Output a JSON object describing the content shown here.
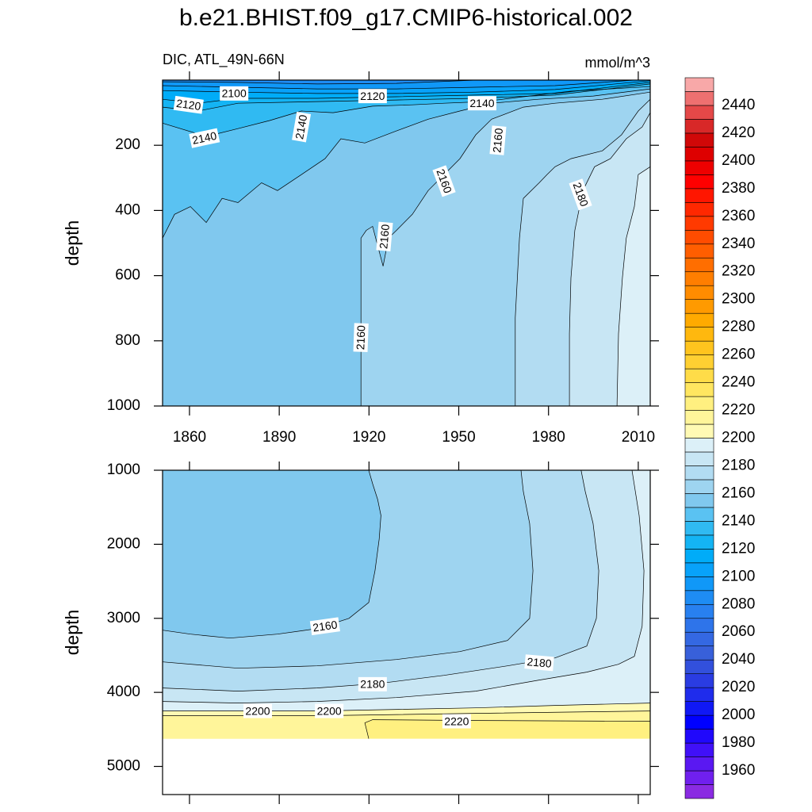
{
  "title": "b.e21.BHIST.f09_g17.CMIP6-historical.002",
  "colorbar": {
    "levels": [
      1950,
      1960,
      1970,
      1980,
      1990,
      2000,
      2010,
      2020,
      2030,
      2040,
      2050,
      2060,
      2070,
      2080,
      2090,
      2100,
      2110,
      2120,
      2130,
      2140,
      2150,
      2160,
      2170,
      2180,
      2190,
      2200,
      2210,
      2220,
      2230,
      2240,
      2250,
      2260,
      2270,
      2280,
      2290,
      2300,
      2310,
      2320,
      2330,
      2340,
      2350,
      2360,
      2370,
      2380,
      2390,
      2400,
      2410,
      2420,
      2430,
      2440,
      2450
    ],
    "colors": [
      "#8a2be2",
      "#7020ee",
      "#5a18f2",
      "#4010f8",
      "#2008fc",
      "#0000ff",
      "#1018f5",
      "#1f2cec",
      "#2a3ce2",
      "#3250dc",
      "#3860da",
      "#3468e2",
      "#2e74ea",
      "#2880f0",
      "#1e8cf4",
      "#1098f8",
      "#08a2fa",
      "#00acf8",
      "#14b4f4",
      "#30baf2",
      "#5ac2f2",
      "#80c8ee",
      "#9ed4f0",
      "#b2dcf2",
      "#c8e6f4",
      "#dcf0f8",
      "#fffab4",
      "#fff59a",
      "#fff080",
      "#ffe660",
      "#ffdc48",
      "#ffd032",
      "#ffc41e",
      "#ffb80e",
      "#ffaa00",
      "#ff9a00",
      "#ff8c00",
      "#ff7e00",
      "#ff6e00",
      "#ff5e00",
      "#ff4c00",
      "#ff3a00",
      "#ff2800",
      "#ff1600",
      "#ff0000",
      "#ee0000",
      "#de0000",
      "#d00808",
      "#d82828",
      "#e44848",
      "#ee7070",
      "#f8a8a8"
    ],
    "ticks": [
      1960,
      1980,
      2000,
      2020,
      2040,
      2060,
      2080,
      2100,
      2120,
      2140,
      2160,
      2180,
      2200,
      2220,
      2240,
      2260,
      2280,
      2300,
      2320,
      2340,
      2360,
      2380,
      2400,
      2420,
      2440
    ]
  },
  "chart_data": [
    {
      "type": "contour",
      "subtitle": "DIC, ATL_49N-66N",
      "units": "mmol/m^3",
      "ylabel": "depth",
      "y_reversed": true,
      "xlim": [
        1851,
        2014
      ],
      "ylim": [
        0,
        1000
      ],
      "data_ylim": [
        0,
        1000
      ],
      "xticks": [
        1860,
        1890,
        1920,
        1950,
        1980,
        2010
      ],
      "yticks": [
        200,
        400,
        600,
        800,
        1000
      ],
      "contours": [
        {
          "level": 2090,
          "x": [
            1955.7,
            1929.2,
            1902.7,
            1876.2,
            1851
          ],
          "y": [
            0,
            10,
            12,
            7,
            5
          ]
        },
        {
          "level": 2100,
          "x": [
            2008.7,
            1982.2,
            1955.7,
            1929.2,
            1902.7,
            1876.2,
            1851
          ],
          "y": [
            0,
            17,
            22,
            27,
            27,
            22,
            17
          ]
        },
        {
          "level": 2110,
          "x": [
            2014,
            1982.2,
            1955.7,
            1929.2,
            1902.7,
            1876.2,
            1851
          ],
          "y": [
            2,
            29,
            37,
            41,
            41,
            37,
            32
          ]
        },
        {
          "level": 2120,
          "x": [
            2014,
            1982.2,
            1955.7,
            1929.2,
            1902.7,
            1876.2,
            1862.9,
            1851
          ],
          "y": [
            7,
            41,
            46,
            51,
            56,
            56,
            71,
            59
          ]
        },
        {
          "level": 2130,
          "x": [
            2014,
            1982.2,
            1955.7,
            1929.2,
            1902.7,
            1876.2,
            1862.9,
            1851
          ],
          "y": [
            12,
            46,
            56,
            61,
            66,
            71,
            95,
            83
          ]
        },
        {
          "level": 2140,
          "x": [
            2014,
            1987.5,
            1971.6,
            1958.3,
            1945.1,
            1934.5,
            1921.2,
            1908,
            1897.4,
            1886.8,
            1876.2,
            1865.6,
            1851
          ],
          "y": [
            20,
            34,
            51,
            66,
            71,
            76,
            80,
            100,
            95,
            124,
            149,
            173,
            132
          ]
        },
        {
          "level": 2150,
          "x": [
            2014,
            1995,
            1976.6,
            1961,
            1950.4,
            1939.8,
            1929.2,
            1918.6,
            1910.6,
            1905.3,
            1897.4,
            1889.4,
            1884.1,
            1876.2,
            1870.9,
            1865.6,
            1860.3,
            1855,
            1851
          ],
          "y": [
            27,
            49,
            59,
            71,
            95,
            120,
            156,
            193,
            180,
            241,
            290,
            339,
            315,
            376,
            363,
            437,
            388,
            412,
            485
          ]
        },
        {
          "level": 2160,
          "x": [
            2014,
            1998,
            1982.2,
            1971.6,
            1961,
            1955.7,
            1950.4,
            1945.1,
            1939.8,
            1934.5,
            1929.2,
            1926.5,
            1924.7,
            1921.2,
            1919.1,
            1917.3,
            1917.3
          ],
          "y": [
            37,
            59,
            71,
            83,
            120,
            168,
            241,
            290,
            339,
            412,
            461,
            485,
            571,
            449,
            461,
            485,
            1000
          ]
        },
        {
          "level": 2170,
          "x": [
            2014,
            2010,
            2004.4,
            1998,
            1987.5,
            1982.2,
            1979.5,
            1976.9,
            1971.6,
            1970.3,
            1968.9,
            1968.9
          ],
          "y": [
            59,
            95,
            168,
            217,
            241,
            266,
            290,
            315,
            363,
            485,
            729,
            1000
          ]
        },
        {
          "level": 2180,
          "x": [
            2014,
            2011.3,
            2006,
            2000.7,
            1995.4,
            1991.5,
            1988.8,
            1987.5,
            1987,
            1987
          ],
          "y": [
            100,
            144,
            180,
            241,
            266,
            339,
            461,
            607,
            778,
            1000
          ]
        },
        {
          "level": 2190,
          "x": [
            2014,
            2010,
            2008.7,
            2006,
            2004.7,
            2003.4,
            2002.9
          ],
          "y": [
            266,
            290,
            388,
            485,
            607,
            778,
            1000
          ]
        }
      ],
      "labels": [
        {
          "value": 2100,
          "x": 1874.9,
          "y": 41
        },
        {
          "value": 2120,
          "x": 1859.7,
          "y": 76
        },
        {
          "value": 2140,
          "x": 1865,
          "y": 178
        },
        {
          "value": 2140,
          "x": 1897.4,
          "y": 144
        },
        {
          "value": 2120,
          "x": 1921.2,
          "y": 49
        },
        {
          "value": 2140,
          "x": 1957.8,
          "y": 71
        },
        {
          "value": 2160,
          "x": 1963.1,
          "y": 185
        },
        {
          "value": 2160,
          "x": 1945.1,
          "y": 310
        },
        {
          "value": 2160,
          "x": 1925.2,
          "y": 480
        },
        {
          "value": 2160,
          "x": 1917.3,
          "y": 790
        },
        {
          "value": 2180,
          "x": 1990.7,
          "y": 351
        }
      ]
    },
    {
      "type": "contour",
      "ylabel": "depth",
      "y_reversed": true,
      "xlim": [
        1851,
        2014
      ],
      "ylim": [
        1000,
        5380
      ],
      "data_ylim": [
        1000,
        4626
      ],
      "yticks": [
        1000,
        2000,
        3000,
        4000,
        5000
      ],
      "contours": [
        {
          "level": 2160,
          "x": [
            1919.9,
            1921.2,
            1922.9,
            1924,
            1923.4,
            1922,
            1919.9,
            1913.3,
            1902.7,
            1889.4,
            1873.5,
            1860.3,
            1851
          ],
          "y": [
            1000,
            1182,
            1396,
            1610,
            1930,
            2358,
            2786,
            3000,
            3139,
            3214,
            3267,
            3214,
            3160
          ]
        },
        {
          "level": 2170,
          "x": [
            1970.8,
            1971.6,
            1973.7,
            1974.8,
            1973.7,
            1966.3,
            1950.4,
            1929.2,
            1902.7,
            1876.2,
            1851
          ],
          "y": [
            1000,
            1289,
            1717,
            2358,
            3000,
            3299,
            3449,
            3556,
            3642,
            3674,
            3588
          ]
        },
        {
          "level": 2180,
          "x": [
            1990.9,
            1992.3,
            1994.9,
            1996.8,
            1996,
            1992.8,
            1982.2,
            1966.3,
            1945.1,
            1923.9,
            1902.7,
            1876.2,
            1851
          ],
          "y": [
            1000,
            1289,
            1717,
            2358,
            3000,
            3374,
            3535,
            3642,
            3770,
            3877,
            3941,
            3984,
            3941
          ]
        },
        {
          "level": 2190,
          "x": [
            2007.9,
            2010.3,
            2011.9,
            2011.3,
            2008.7,
            2003.4,
            1992.8,
            1976.9,
            1955.7,
            1929.2,
            1902.7,
            1876.2,
            1851
          ],
          "y": [
            1000,
            1610,
            2358,
            3107,
            3513,
            3620,
            3727,
            3834,
            3984,
            4070,
            4123,
            4144,
            4123
          ]
        },
        {
          "level": 2200,
          "x": [
            2014,
            1982.2,
            1955.7,
            1902.7,
            1851
          ],
          "y": [
            4144,
            4176,
            4209,
            4251,
            4251
          ]
        },
        {
          "level": 2210,
          "x": [
            2014,
            1955.7,
            1902.7,
            1851
          ],
          "y": [
            4251,
            4283,
            4316,
            4316
          ]
        },
        {
          "level": 2220,
          "x": [
            2014,
            1955.7,
            1921.2,
            1918.6,
            1919.9
          ],
          "y": [
            4390,
            4380,
            4369,
            4412,
            4626
          ]
        }
      ],
      "labels": [
        {
          "value": 2160,
          "x": 1905.3,
          "y": 3107
        },
        {
          "value": 2180,
          "x": 1921.2,
          "y": 3890
        },
        {
          "value": 2180,
          "x": 1976.9,
          "y": 3600
        },
        {
          "value": 2200,
          "x": 1882.8,
          "y": 4251
        },
        {
          "value": 2200,
          "x": 1906.7,
          "y": 4251
        },
        {
          "value": 2220,
          "x": 1949.3,
          "y": 4390
        }
      ]
    }
  ]
}
